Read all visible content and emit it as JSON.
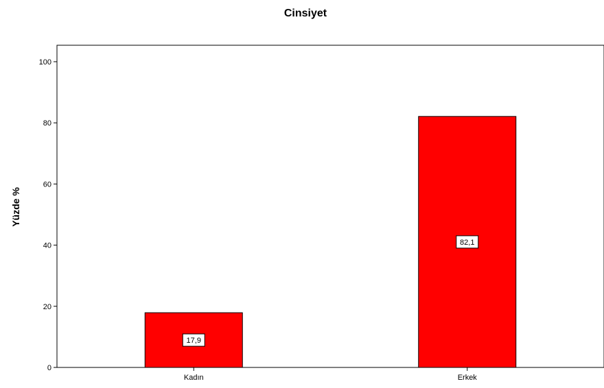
{
  "chart_data": {
    "type": "bar",
    "title": "Cinsiyet",
    "xlabel": "",
    "ylabel": "Yüzde %",
    "categories": [
      "Kadın",
      "Erkek"
    ],
    "values": [
      17.9,
      82.1
    ],
    "data_labels": [
      "17,9",
      "82,1"
    ],
    "ylim": [
      0,
      100
    ],
    "yticks": [
      0,
      20,
      40,
      60,
      80,
      100
    ],
    "grid": false,
    "legend": "none",
    "bar_color": "#ff0000",
    "bar_edge_color": "#000000"
  }
}
